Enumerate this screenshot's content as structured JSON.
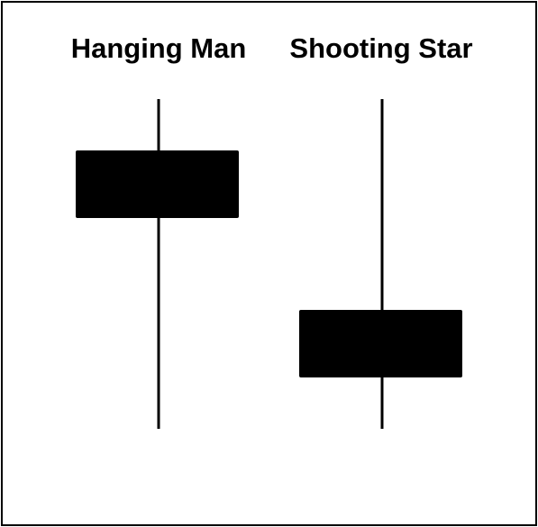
{
  "diagram": {
    "candles": [
      {
        "label": "Hanging Man",
        "color": "#000000"
      },
      {
        "label": "Shooting Star",
        "color": "#000000"
      }
    ],
    "border_color": "#000000",
    "background_color": "#ffffff"
  }
}
